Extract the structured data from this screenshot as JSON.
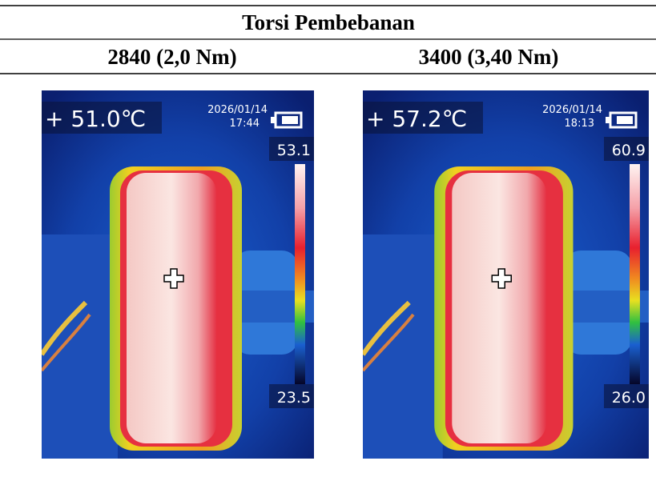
{
  "header": {
    "title": "Torsi Pembebanan"
  },
  "columns": [
    {
      "label": "2840 (2,0 Nm)",
      "image": {
        "temperature": "+ 51.0℃",
        "date": "2026/01/14",
        "time": "17:44",
        "scale_max": "53.1",
        "scale_min": "23.5"
      }
    },
    {
      "label": "3400 (3,40 Nm)",
      "image": {
        "temperature": "+ 57.2℃",
        "date": "2026/01/14",
        "time": "18:13",
        "scale_max": "60.9",
        "scale_min": "26.0"
      }
    }
  ]
}
